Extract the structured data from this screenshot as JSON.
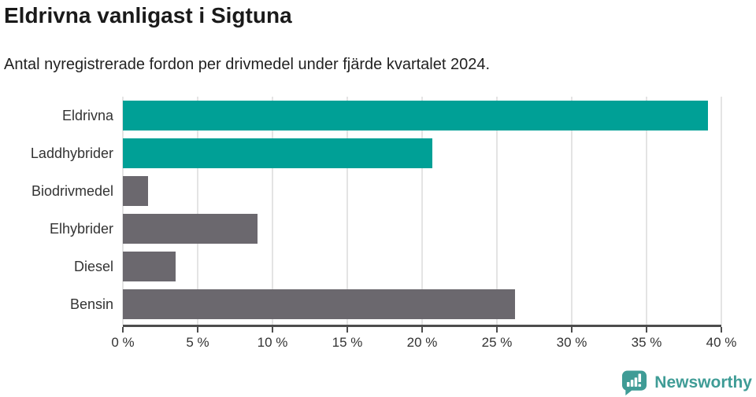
{
  "chart_data": {
    "type": "bar",
    "orientation": "horizontal",
    "title": "Eldrivna vanligast i Sigtuna",
    "subtitle": "Antal nyregistrerade fordon per drivmedel under fjärde kvartalet 2024.",
    "categories": [
      "Eldrivna",
      "Laddhybrider",
      "Biodrivmedel",
      "Elhybrider",
      "Diesel",
      "Bensin"
    ],
    "values": [
      39.1,
      20.7,
      1.7,
      9.0,
      3.5,
      26.2
    ],
    "unit": "%",
    "bar_colors": [
      "#00a096",
      "#00a096",
      "#6b686e",
      "#6b686e",
      "#6b686e",
      "#6b686e"
    ],
    "xlabel": "",
    "ylabel": "",
    "xlim": [
      0,
      40
    ],
    "x_ticks": [
      0,
      5,
      10,
      15,
      20,
      25,
      30,
      35,
      40
    ],
    "x_tick_labels": [
      "0 %",
      "5 %",
      "10 %",
      "15 %",
      "20 %",
      "25 %",
      "30 %",
      "35 %",
      "40 %"
    ],
    "grid": true,
    "legend": false
  },
  "branding": {
    "logo_text": "Newsworthy",
    "logo_color": "#3f9c96"
  },
  "colors": {
    "accent_teal": "#00a096",
    "neutral_gray": "#6b686e",
    "axis": "#4d4d4d",
    "gridline": "#e4e4e4",
    "text": "#333333"
  }
}
